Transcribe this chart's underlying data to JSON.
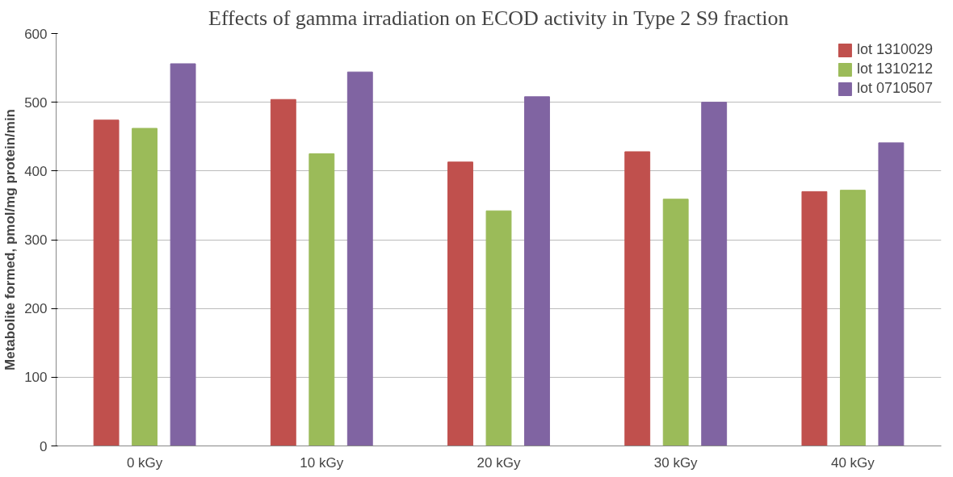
{
  "chart_data": {
    "type": "bar",
    "title": "Effects of gamma irradiation on ECOD activity in Type 2 S9 fraction",
    "ylabel": "Metabolite formed, pmol/mg protein/min",
    "categories": [
      "0 kGy",
      "10 kGy",
      "20 kGy",
      "30 kGy",
      "40 kGy"
    ],
    "series": [
      {
        "name": "lot 1310029",
        "color": "#c0504d",
        "values": [
          474,
          504,
          413,
          428,
          370
        ]
      },
      {
        "name": "lot 1310212",
        "color": "#9bbb59",
        "values": [
          462,
          425,
          342,
          359,
          372
        ]
      },
      {
        "name": "lot 0710507",
        "color": "#8064a2",
        "values": [
          556,
          544,
          508,
          500,
          441
        ]
      }
    ],
    "ylim": [
      0,
      600
    ],
    "yticks": [
      0,
      100,
      200,
      300,
      400,
      500,
      600
    ],
    "grid": "y",
    "legend": "top right"
  }
}
